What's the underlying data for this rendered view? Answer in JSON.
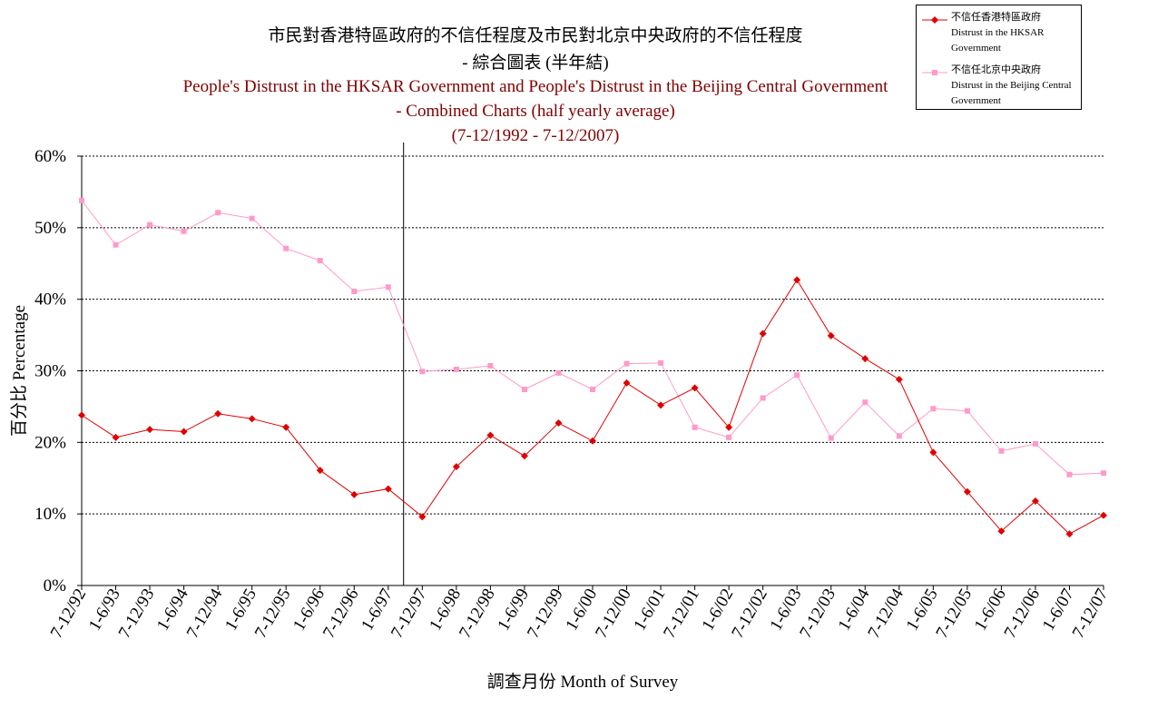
{
  "chart_data": {
    "type": "line",
    "title_lines": [
      "市民對香港特區政府的不信任程度及市民對北京中央政府的不信任程度",
      "- 綜合圖表 (半年結)",
      "People's Distrust in the HKSAR Government and People's Distrust in the Beijing Central Government",
      "- Combined Charts (half yearly average)",
      "(7-12/1992 - 7-12/2007)"
    ],
    "xlabel": "調查月份 Month of Survey",
    "ylabel": "百分比 Percentage",
    "ylim": [
      0,
      60
    ],
    "yticks": [
      "0%",
      "10%",
      "20%",
      "30%",
      "40%",
      "50%",
      "60%"
    ],
    "grid": "horizontal dotted",
    "legend_position": "top-right",
    "marker_line_after": "1-6/97",
    "categories": [
      "7-12/92",
      "1-6/93",
      "7-12/93",
      "1-6/94",
      "7-12/94",
      "1-6/95",
      "7-12/95",
      "1-6/96",
      "7-12/96",
      "1-6/97",
      "7-12/97",
      "1-6/98",
      "7-12/98",
      "1-6/99",
      "7-12/99",
      "1-6/00",
      "7-12/00",
      "1-6/01",
      "7-12/01",
      "1-6/02",
      "7-12/02",
      "1-6/03",
      "7-12/03",
      "1-6/04",
      "7-12/04",
      "1-6/05",
      "7-12/05",
      "1-6/06",
      "7-12/06",
      "1-6/07",
      "7-12/07"
    ],
    "series": [
      {
        "name_lines": [
          "不信任香港特區政府",
          "Distrust in the HKSAR",
          "Government"
        ],
        "color": "#e00000",
        "marker": "diamond",
        "values": [
          23.8,
          20.7,
          21.8,
          21.5,
          24.0,
          23.3,
          22.1,
          16.1,
          12.7,
          13.5,
          9.6,
          16.6,
          21.0,
          18.1,
          22.7,
          20.2,
          28.3,
          25.2,
          27.6,
          22.1,
          35.2,
          42.7,
          34.9,
          31.7,
          28.8,
          18.6,
          13.1,
          7.6,
          11.8,
          7.2,
          9.8
        ]
      },
      {
        "name_lines": [
          "不信任北京中央政府",
          "Distrust in the Beijing Central",
          "Government"
        ],
        "color": "#ff99cc",
        "marker": "square",
        "values": [
          53.8,
          47.6,
          50.4,
          49.5,
          52.1,
          51.3,
          47.1,
          45.4,
          41.1,
          41.7,
          29.9,
          30.2,
          30.7,
          27.4,
          29.7,
          27.4,
          31.0,
          31.1,
          22.1,
          20.7,
          26.2,
          29.4,
          20.6,
          25.6,
          20.9,
          24.7,
          24.4,
          18.8,
          19.8,
          15.5,
          15.7
        ]
      }
    ]
  }
}
